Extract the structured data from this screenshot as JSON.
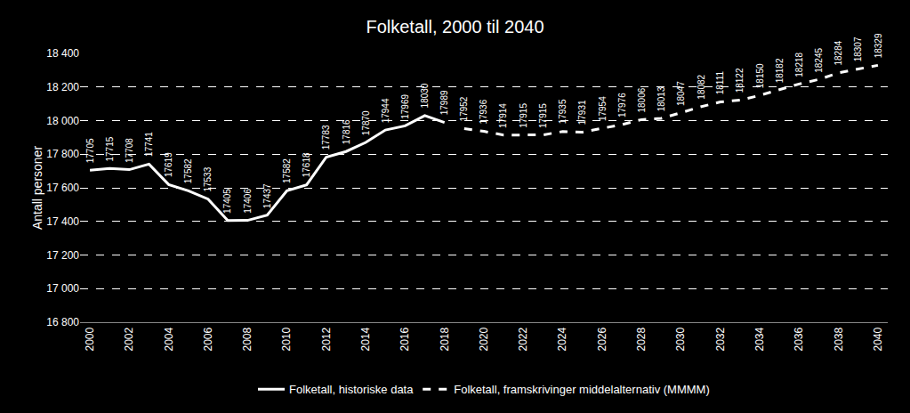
{
  "chart_data": {
    "type": "line",
    "title": "Folketall, 2000 til 2040",
    "y_label": "Antall personer",
    "x": [
      2000,
      2001,
      2002,
      2003,
      2004,
      2005,
      2006,
      2007,
      2008,
      2009,
      2010,
      2011,
      2012,
      2013,
      2014,
      2015,
      2016,
      2017,
      2018,
      2019,
      2020,
      2021,
      2022,
      2023,
      2024,
      2025,
      2026,
      2027,
      2028,
      2029,
      2030,
      2031,
      2032,
      2033,
      2034,
      2035,
      2036,
      2037,
      2038,
      2039,
      2040
    ],
    "series": [
      {
        "name": "Folketall, historiske data",
        "color": "#ffffff",
        "line_style": "solid",
        "values": [
          17705,
          17715,
          17708,
          17741,
          17619,
          17582,
          17533,
          17405,
          17406,
          17437,
          17582,
          17618,
          17783,
          17816,
          17870,
          17944,
          17969,
          18030,
          17989,
          null,
          null,
          null,
          null,
          null,
          null,
          null,
          null,
          null,
          null,
          null,
          null,
          null,
          null,
          null,
          null,
          null,
          null,
          null,
          null,
          null,
          null
        ]
      },
      {
        "name": "Folketall, framskrivinger middelalternativ (MMMM)",
        "color": "#ffffff",
        "line_style": "dash",
        "values": [
          null,
          null,
          null,
          null,
          null,
          null,
          null,
          null,
          null,
          null,
          null,
          null,
          null,
          null,
          null,
          null,
          null,
          null,
          null,
          17952,
          17936,
          17914,
          17915,
          17915,
          17935,
          17931,
          17954,
          17976,
          18006,
          18013,
          18047,
          18082,
          18111,
          18122,
          18150,
          18182,
          18218,
          18245,
          18284,
          18307,
          18329
        ]
      }
    ],
    "xlim": [
      1999.5,
      2040.5
    ],
    "xticks": [
      2000,
      2002,
      2004,
      2006,
      2008,
      2010,
      2012,
      2014,
      2016,
      2018,
      2020,
      2022,
      2024,
      2026,
      2028,
      2030,
      2032,
      2034,
      2036,
      2038,
      2040
    ],
    "ylim": [
      16800,
      18400
    ],
    "yticks": [
      {
        "value": 16800,
        "label": "16 800"
      },
      {
        "value": 17000,
        "label": "17 000"
      },
      {
        "value": 17200,
        "label": "17 200"
      },
      {
        "value": 17400,
        "label": "17 400"
      },
      {
        "value": 17600,
        "label": "17 600"
      },
      {
        "value": 17800,
        "label": "17 800"
      },
      {
        "value": 18000,
        "label": "18 000"
      },
      {
        "value": 18200,
        "label": "18 200"
      },
      {
        "value": 18400,
        "label": "18 400"
      }
    ],
    "grid": true,
    "legend": "bottom",
    "data_labels": true
  }
}
